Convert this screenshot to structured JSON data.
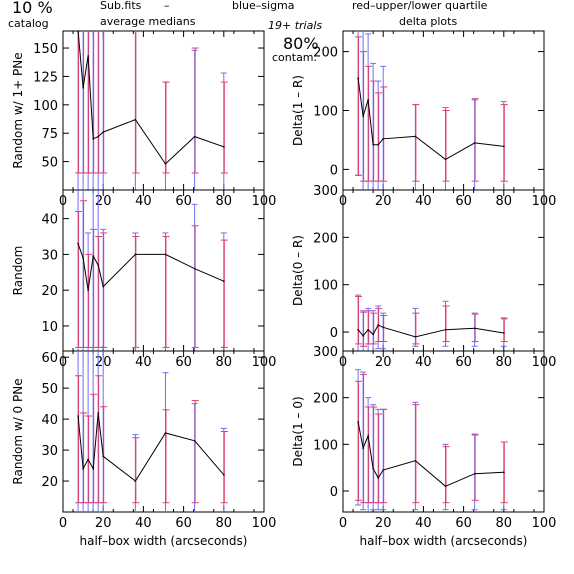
{
  "header": {
    "percent": "10 %",
    "catalog": "catalog",
    "subfits": "Sub.fits",
    "dash": "–",
    "averages": "average medians",
    "blue_label": "blue–sigma",
    "red_label": "red–upper/lower quartile",
    "trials": "19+ trials",
    "contam_pct": "80%",
    "contam": "contam.",
    "delta_title": "delta plots"
  },
  "colors": {
    "blue": "#6f6ff5",
    "red": "#e0406c",
    "line": "#000000"
  },
  "chart_data": [
    {
      "type": "line",
      "ylabel": "Random w/ 1+ PNe",
      "xlim": [
        0,
        100
      ],
      "ylim": [
        25,
        165
      ],
      "yticks": [
        50,
        75,
        100,
        125,
        150
      ],
      "x": [
        7.5,
        10,
        12.5,
        15,
        17.5,
        20,
        36,
        51,
        65.5,
        80
      ],
      "values": [
        188,
        115,
        143,
        70,
        72,
        76,
        87,
        48,
        72,
        63
      ],
      "sigma_lo": [
        -20,
        -20,
        -30,
        -20,
        -20,
        -20,
        -20,
        -20,
        -20,
        -20
      ],
      "sigma_hi": [
        290,
        280,
        280,
        202,
        188,
        200,
        202,
        120,
        148,
        128
      ],
      "quart_lo": [
        40,
        40,
        40,
        40,
        40,
        40,
        40,
        40,
        40,
        40
      ],
      "quart_hi": [
        270,
        265,
        172,
        178,
        190,
        178,
        205,
        120,
        150,
        120
      ]
    },
    {
      "type": "line",
      "ylabel": "Random",
      "xlim": [
        0,
        100
      ],
      "ylim": [
        3,
        48
      ],
      "yticks": [
        10,
        20,
        30,
        40
      ],
      "x": [
        7.5,
        10,
        12.5,
        15,
        17.5,
        20,
        36,
        51,
        65.5,
        80
      ],
      "values": [
        33,
        29,
        20,
        29.5,
        27,
        21,
        30,
        30,
        26,
        22.5
      ],
      "sigma_lo": [
        -5,
        -5,
        -5,
        -5,
        -5,
        -5,
        -5,
        -5,
        -5,
        -5
      ],
      "sigma_hi": [
        52,
        53,
        36,
        52,
        52,
        37,
        36,
        36,
        44,
        36
      ],
      "quart_lo": [
        4,
        4,
        4,
        4,
        4,
        4,
        4,
        4,
        4,
        4
      ],
      "quart_hi": [
        42,
        45,
        30,
        37,
        35,
        36,
        35,
        35,
        38,
        34
      ]
    },
    {
      "type": "line",
      "ylabel": "Random w/ 0 PNe",
      "xlim": [
        0,
        100
      ],
      "ylim": [
        10,
        62
      ],
      "yticks": [
        20,
        30,
        40,
        50,
        60
      ],
      "x": [
        7.5,
        10,
        12.5,
        15,
        17.5,
        20,
        36,
        51,
        65.5,
        80
      ],
      "values": [
        41,
        24,
        27,
        24,
        42,
        28,
        20,
        35.5,
        33,
        22
      ],
      "sigma_lo": [
        0,
        0,
        0,
        0,
        0,
        0,
        0,
        0,
        0,
        0
      ],
      "sigma_hi": [
        75,
        72,
        64,
        70,
        75,
        70,
        35,
        55,
        45,
        37
      ],
      "quart_lo": [
        13,
        13,
        13,
        13,
        13,
        13,
        13,
        13,
        13,
        13
      ],
      "quart_hi": [
        54,
        42,
        41,
        48,
        54,
        44,
        34,
        43,
        46,
        36
      ]
    },
    {
      "type": "line",
      "ylabel": "Delta(1 – R)",
      "xlim": [
        0,
        100
      ],
      "ylim": [
        -35,
        235
      ],
      "yticks": [
        0,
        100,
        200
      ],
      "x": [
        7.5,
        10,
        12.5,
        15,
        17.5,
        20,
        36,
        51,
        65.5,
        80
      ],
      "values": [
        155,
        90,
        118,
        42,
        42,
        52,
        56,
        17,
        45,
        39
      ],
      "sigma_lo": [
        -10,
        -40,
        -50,
        -60,
        -40,
        -40,
        -40,
        -40,
        -40,
        -40
      ],
      "sigma_hi": [
        300,
        260,
        230,
        180,
        150,
        175,
        110,
        105,
        118,
        115
      ],
      "quart_lo": [
        -10,
        -20,
        -20,
        -20,
        -20,
        -20,
        -20,
        -20,
        -20,
        -20
      ],
      "quart_hi": [
        225,
        200,
        175,
        150,
        130,
        140,
        110,
        100,
        120,
        110
      ]
    },
    {
      "type": "line",
      "ylabel": "Delta(0 – R)",
      "xlim": [
        0,
        100
      ],
      "ylim": [
        -40,
        300
      ],
      "yticks": [
        0,
        100,
        200,
        300
      ],
      "x": [
        7.5,
        10,
        12.5,
        15,
        17.5,
        20,
        36,
        51,
        65.5,
        80
      ],
      "values": [
        5,
        -8,
        5,
        -5,
        15,
        10,
        -10,
        5,
        8,
        -2
      ],
      "sigma_lo": [
        -40,
        -45,
        -40,
        -40,
        -35,
        -35,
        -30,
        -30,
        -30,
        -30
      ],
      "sigma_hi": [
        78,
        45,
        50,
        45,
        55,
        40,
        50,
        65,
        40,
        30
      ],
      "quart_lo": [
        -25,
        -30,
        -25,
        -25,
        -20,
        -20,
        -25,
        -20,
        -20,
        -20
      ],
      "quart_hi": [
        75,
        42,
        45,
        40,
        50,
        35,
        40,
        55,
        38,
        28
      ]
    },
    {
      "type": "line",
      "ylabel": "Delta(1 – 0)",
      "xlim": [
        0,
        100
      ],
      "ylim": [
        -45,
        300
      ],
      "yticks": [
        0,
        100,
        200,
        300
      ],
      "x": [
        7.5,
        10,
        12.5,
        15,
        17.5,
        20,
        36,
        51,
        65.5,
        80
      ],
      "values": [
        148,
        92,
        118,
        48,
        28,
        45,
        65,
        10,
        37,
        40
      ],
      "sigma_lo": [
        -30,
        -40,
        -45,
        -40,
        -40,
        -40,
        -40,
        -40,
        -40,
        -40
      ],
      "sigma_hi": [
        260,
        255,
        200,
        185,
        175,
        175,
        190,
        100,
        122,
        105
      ],
      "quart_lo": [
        -20,
        -25,
        -25,
        -25,
        -25,
        -25,
        -25,
        -25,
        -20,
        -25
      ],
      "quart_hi": [
        235,
        250,
        180,
        180,
        165,
        175,
        185,
        95,
        120,
        105
      ]
    }
  ],
  "axes": {
    "xticks": [
      0,
      20,
      40,
      60,
      80,
      100
    ],
    "xlabel": "half–box width (arcseconds)"
  }
}
